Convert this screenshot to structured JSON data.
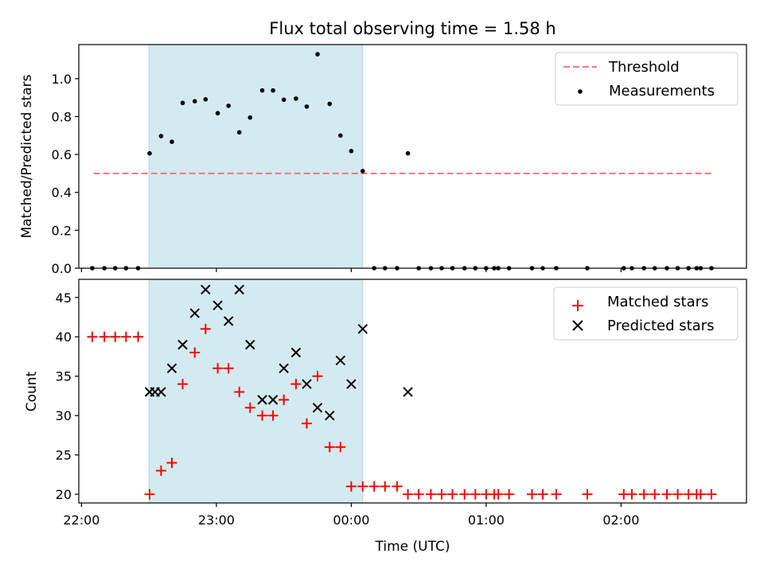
{
  "title": "Flux total observing time = 1.58 h",
  "colors": {
    "shade": "#d3eaf0",
    "threshold": "#f08080",
    "measurement": "#000000",
    "matched": "#ff0000",
    "predicted": "#000000"
  },
  "chart_data": [
    {
      "type": "scatter",
      "ylabel": "Matched/Predicted stars",
      "ylim": [
        0,
        1.18
      ],
      "xlim_hours": [
        21.98,
        26.93
      ],
      "yticks": [
        {
          "value": 0.0,
          "label": "0.0"
        },
        {
          "value": 0.2,
          "label": "0.2"
        },
        {
          "value": 0.4,
          "label": "0.4"
        },
        {
          "value": 0.6,
          "label": "0.6"
        },
        {
          "value": 0.8,
          "label": "0.8"
        },
        {
          "value": 1.0,
          "label": "1.0"
        }
      ],
      "shaded_interval_hours": [
        22.5,
        24.085
      ],
      "threshold": {
        "value": 0.5,
        "x_range_hours": [
          22.09,
          26.67
        ],
        "label": "Threshold"
      },
      "legend": {
        "position": "top-right",
        "entries": [
          "Threshold",
          "Measurements"
        ]
      },
      "series": [
        {
          "name": "Measurements",
          "x_hours": [
            22.08,
            22.17,
            22.25,
            22.33,
            22.42,
            22.505,
            22.59,
            22.67,
            22.75,
            22.84,
            22.92,
            23.01,
            23.09,
            23.17,
            23.25,
            23.34,
            23.42,
            23.5,
            23.59,
            23.67,
            23.75,
            23.84,
            23.92,
            24.0,
            24.085,
            24.17,
            24.25,
            24.34,
            24.42,
            24.5,
            24.59,
            24.67,
            24.75,
            24.84,
            24.92,
            25.0,
            25.06,
            25.09,
            25.17,
            25.34,
            25.42,
            25.52,
            25.75,
            26.02,
            26.08,
            26.17,
            26.25,
            26.34,
            26.42,
            26.5,
            26.56,
            26.59,
            26.67
          ],
          "y": [
            0.0,
            0.0,
            0.0,
            0.0,
            0.0,
            0.606,
            0.697,
            0.667,
            0.872,
            0.881,
            0.891,
            0.818,
            0.857,
            0.717,
            0.795,
            0.938,
            0.938,
            0.889,
            0.895,
            0.853,
            1.129,
            0.867,
            0.7,
            0.618,
            0.512,
            0.0,
            0.0,
            0.0,
            0.606,
            0.0,
            0.0,
            0.0,
            0.0,
            0.0,
            0.0,
            0.0,
            0.0,
            0.0,
            0.0,
            0.0,
            0.0,
            0.0,
            0.0,
            0.0,
            0.0,
            0.0,
            0.0,
            0.0,
            0.0,
            0.0,
            0.0,
            0.0,
            0.0
          ]
        }
      ]
    },
    {
      "type": "scatter",
      "ylabel": "Count",
      "xlabel": "Time (UTC)",
      "ylim": [
        18.9,
        47.3
      ],
      "xlim_hours": [
        21.98,
        26.93
      ],
      "yticks": [
        {
          "value": 20,
          "label": "20"
        },
        {
          "value": 25,
          "label": "25"
        },
        {
          "value": 30,
          "label": "30"
        },
        {
          "value": 35,
          "label": "35"
        },
        {
          "value": 40,
          "label": "40"
        },
        {
          "value": 45,
          "label": "45"
        }
      ],
      "xticks": [
        {
          "value": 22.0,
          "label": "22:00"
        },
        {
          "value": 23.0,
          "label": "23:00"
        },
        {
          "value": 24.0,
          "label": "00:00"
        },
        {
          "value": 25.0,
          "label": "01:00"
        },
        {
          "value": 26.0,
          "label": "02:00"
        }
      ],
      "shaded_interval_hours": [
        22.5,
        24.085
      ],
      "legend": {
        "position": "top-right",
        "entries": [
          "Matched stars",
          "Predicted stars"
        ]
      },
      "series": [
        {
          "name": "Matched stars",
          "marker": "plus",
          "x_hours": [
            22.08,
            22.17,
            22.25,
            22.33,
            22.42,
            22.505,
            22.59,
            22.67,
            22.75,
            22.84,
            22.92,
            23.01,
            23.09,
            23.17,
            23.25,
            23.34,
            23.42,
            23.5,
            23.59,
            23.67,
            23.75,
            23.84,
            23.92,
            24.0,
            24.085,
            24.17,
            24.25,
            24.34,
            24.42,
            24.5,
            24.59,
            24.67,
            24.75,
            24.84,
            24.92,
            25.0,
            25.06,
            25.09,
            25.17,
            25.34,
            25.42,
            25.52,
            25.75,
            26.02,
            26.08,
            26.17,
            26.25,
            26.34,
            26.42,
            26.5,
            26.56,
            26.59,
            26.67
          ],
          "y": [
            40,
            40,
            40,
            40,
            40,
            20,
            23,
            24,
            34,
            38,
            41,
            36,
            36,
            33,
            31,
            30,
            30,
            32,
            34,
            29,
            35,
            26,
            26,
            21,
            21,
            21,
            21,
            21,
            20,
            20,
            20,
            20,
            20,
            20,
            20,
            20,
            20,
            20,
            20,
            20,
            20,
            20,
            20,
            20,
            20,
            20,
            20,
            20,
            20,
            20,
            20,
            20,
            20
          ]
        },
        {
          "name": "Predicted stars",
          "marker": "x",
          "x_hours": [
            22.505,
            22.545,
            22.59,
            22.67,
            22.75,
            22.84,
            22.92,
            23.01,
            23.09,
            23.17,
            23.25,
            23.34,
            23.42,
            23.5,
            23.59,
            23.67,
            23.75,
            23.84,
            23.92,
            24.0,
            24.085,
            24.42
          ],
          "y": [
            33,
            33,
            33,
            36,
            39,
            43,
            46,
            44,
            42,
            46,
            39,
            32,
            32,
            36,
            38,
            34,
            31,
            30,
            37,
            34,
            41,
            33
          ]
        }
      ]
    }
  ]
}
